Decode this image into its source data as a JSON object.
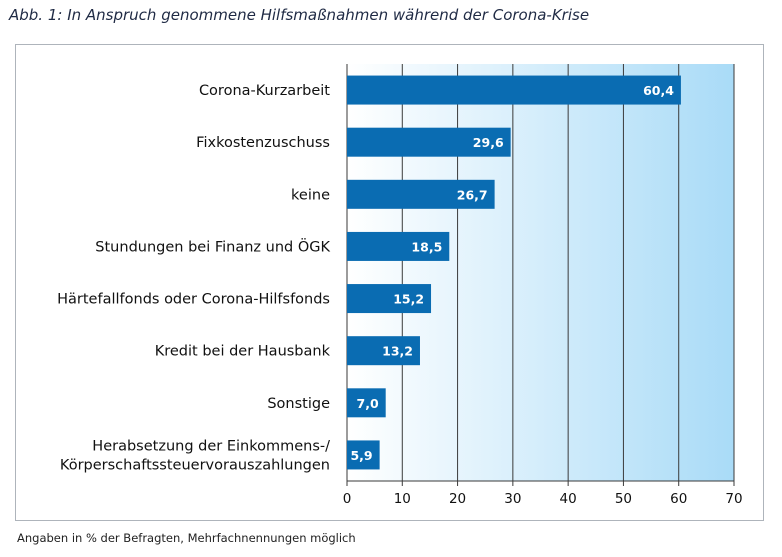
{
  "figure": {
    "title": "Abb. 1: In Anspruch genommene Hilfsmaßnahmen während der Corona-Krise",
    "footnote": "Angaben in % der Befragten, Mehrfachnennungen möglich"
  },
  "colors": {
    "bar": "#0a6cb2",
    "plot_bg_left": "#ffffff",
    "plot_bg_right": "#a9dbf7",
    "grid": "#3a3a3a"
  },
  "chart_data": {
    "type": "bar",
    "orientation": "horizontal",
    "categories": [
      "Corona-Kurzarbeit",
      "Fixkostenzuschuss",
      "keine",
      "Stundungen bei Finanz und ÖGK",
      "Härtefallfonds oder Corona-Hilfsfonds",
      "Kredit bei der Hausbank",
      "Sonstige",
      [
        "Herabsetzung der Einkommens-/",
        "Körperschaftssteuervorauszahlungen"
      ]
    ],
    "values": [
      60.4,
      29.6,
      26.7,
      18.5,
      15.2,
      13.2,
      7.0,
      5.9
    ],
    "value_labels": [
      "60,4",
      "29,6",
      "26,7",
      "18,5",
      "15,2",
      "13,2",
      "7,0",
      "5,9"
    ],
    "xlim": [
      0,
      70
    ],
    "xticks": [
      0,
      10,
      20,
      30,
      40,
      50,
      60,
      70
    ],
    "grid": true,
    "legend": "none"
  }
}
